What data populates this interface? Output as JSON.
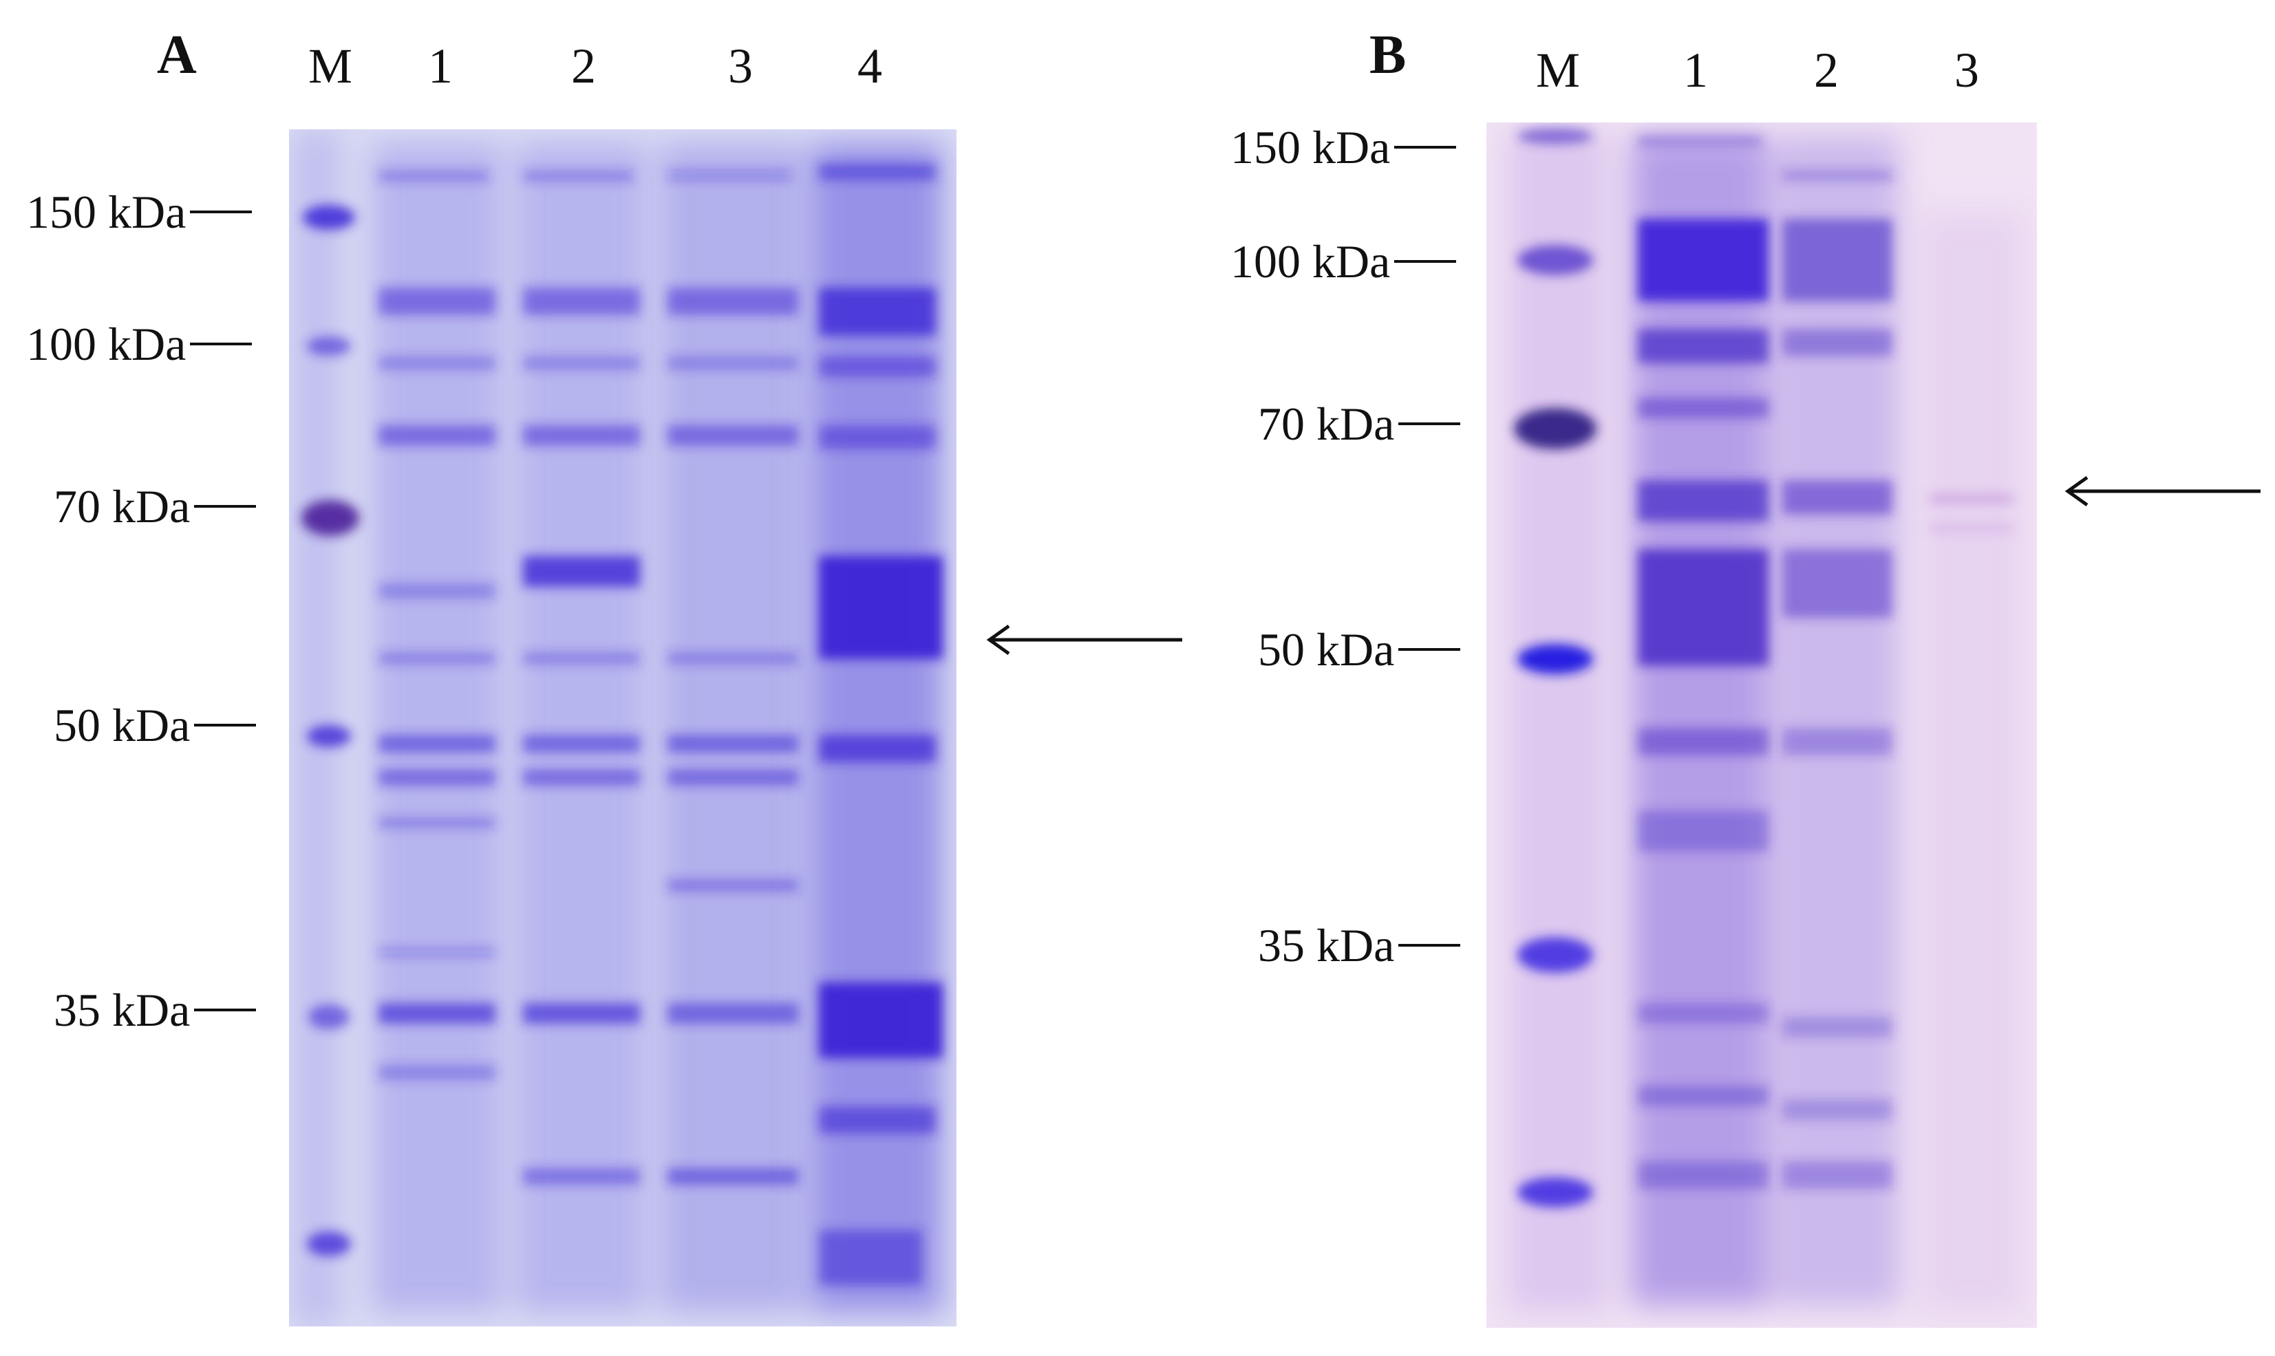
{
  "panels": [
    {
      "letter": "A",
      "lanes": [
        "M",
        "1",
        "2",
        "3",
        "4"
      ],
      "markers": [
        "150 kDa",
        "100 kDa",
        "70 kDa",
        "50 kDa",
        "35 kDa"
      ]
    },
    {
      "letter": "B",
      "lanes": [
        "M",
        "1",
        "2",
        "3"
      ],
      "markers": [
        "150 kDa",
        "100 kDa",
        "70 kDa",
        "50 kDa",
        "35 kDa"
      ]
    }
  ],
  "colors": {
    "gel_a_background": "#d9dcf5",
    "gel_b_background": "#efe0f3",
    "stain": "#3b24d6",
    "stain_b": "#4a2cc8"
  }
}
